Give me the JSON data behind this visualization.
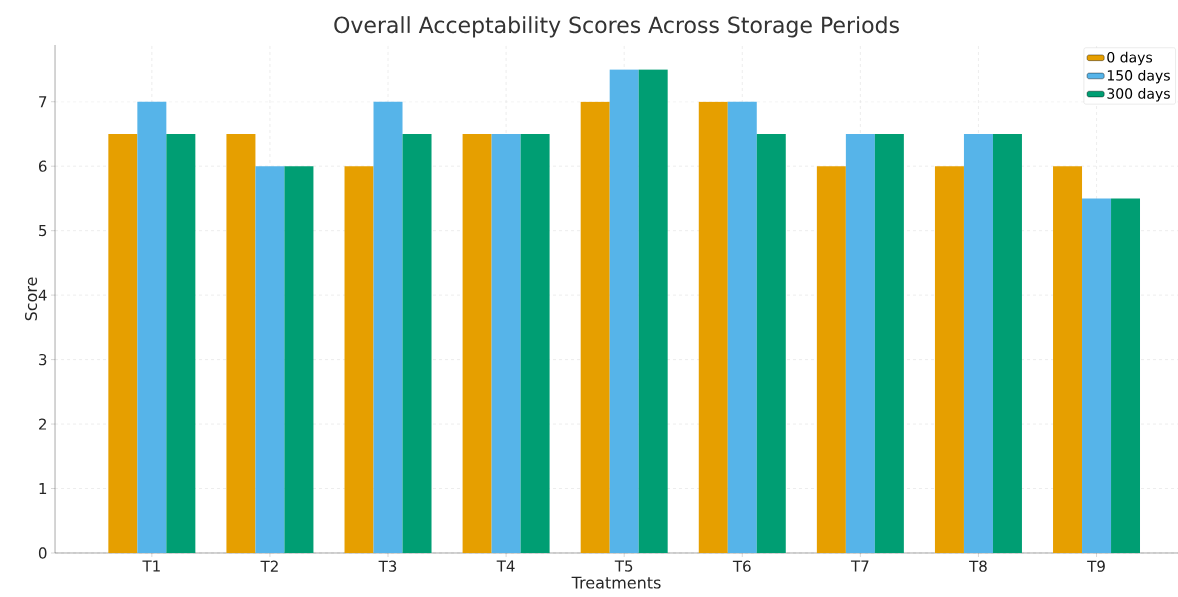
{
  "chart_data": {
    "type": "bar",
    "title": "Overall Acceptability Scores Across Storage Periods",
    "xlabel": "Treatments",
    "ylabel": "Score",
    "categories": [
      "T1",
      "T2",
      "T3",
      "T4",
      "T5",
      "T6",
      "T7",
      "T8",
      "T9"
    ],
    "series": [
      {
        "name": "0 days",
        "color": "#e69f00",
        "values": [
          6.5,
          6.5,
          6,
          6.5,
          7,
          7,
          6,
          6,
          6
        ]
      },
      {
        "name": "150 days",
        "color": "#56b4e9",
        "values": [
          7,
          6,
          7,
          6.5,
          7.5,
          7,
          6.5,
          6.5,
          5.5
        ]
      },
      {
        "name": "300 days",
        "color": "#009e73",
        "values": [
          6.5,
          6,
          6.5,
          6.5,
          7.5,
          6.5,
          6.5,
          6.5,
          5.5
        ]
      }
    ],
    "ylim": [
      0,
      7.88
    ],
    "yticks": [
      0,
      1,
      2,
      3,
      4,
      5,
      6,
      7
    ],
    "grid": true,
    "legend": "top right"
  }
}
